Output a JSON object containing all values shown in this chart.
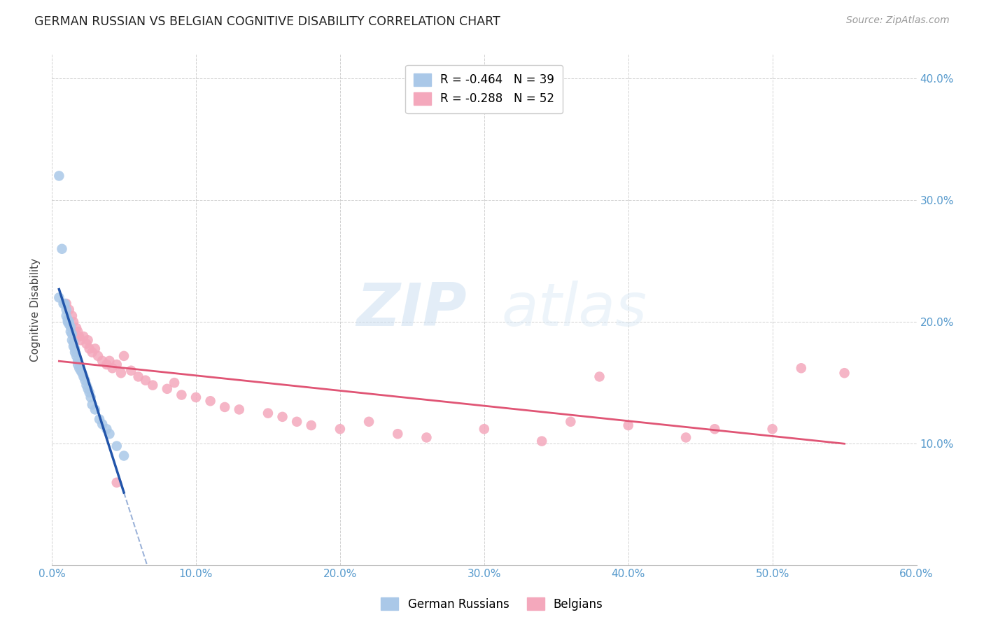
{
  "title": "GERMAN RUSSIAN VS BELGIAN COGNITIVE DISABILITY CORRELATION CHART",
  "source": "Source: ZipAtlas.com",
  "ylabel_label": "Cognitive Disability",
  "x_min": 0.0,
  "x_max": 0.6,
  "y_min": 0.0,
  "y_max": 0.42,
  "x_ticks": [
    0.0,
    0.1,
    0.2,
    0.3,
    0.4,
    0.5,
    0.6
  ],
  "y_ticks": [
    0.1,
    0.2,
    0.3,
    0.4
  ],
  "x_tick_labels": [
    "0.0%",
    "10.0%",
    "20.0%",
    "30.0%",
    "40.0%",
    "50.0%",
    "60.0%"
  ],
  "y_tick_labels": [
    "10.0%",
    "20.0%",
    "30.0%",
    "40.0%"
  ],
  "blue_R": -0.464,
  "blue_N": 39,
  "pink_R": -0.288,
  "pink_N": 52,
  "blue_color": "#aac8e8",
  "pink_color": "#f4a8bc",
  "blue_line_color": "#2255aa",
  "pink_line_color": "#e05575",
  "watermark_zip": "ZIP",
  "watermark_atlas": "atlas",
  "legend_label_blue": "German Russians",
  "legend_label_pink": "Belgians",
  "blue_points_x": [
    0.005,
    0.007,
    0.008,
    0.009,
    0.01,
    0.01,
    0.011,
    0.011,
    0.012,
    0.012,
    0.013,
    0.013,
    0.014,
    0.014,
    0.015,
    0.015,
    0.016,
    0.016,
    0.017,
    0.018,
    0.018,
    0.019,
    0.02,
    0.021,
    0.022,
    0.023,
    0.024,
    0.025,
    0.026,
    0.027,
    0.028,
    0.03,
    0.033,
    0.035,
    0.038,
    0.04,
    0.045,
    0.05,
    0.005
  ],
  "blue_points_y": [
    0.32,
    0.26,
    0.215,
    0.215,
    0.21,
    0.205,
    0.202,
    0.2,
    0.2,
    0.198,
    0.196,
    0.192,
    0.19,
    0.185,
    0.183,
    0.18,
    0.178,
    0.175,
    0.172,
    0.168,
    0.165,
    0.162,
    0.16,
    0.158,
    0.155,
    0.152,
    0.148,
    0.145,
    0.142,
    0.138,
    0.132,
    0.128,
    0.12,
    0.116,
    0.112,
    0.108,
    0.098,
    0.09,
    0.22
  ],
  "pink_points_x": [
    0.01,
    0.012,
    0.014,
    0.015,
    0.017,
    0.018,
    0.019,
    0.02,
    0.022,
    0.024,
    0.025,
    0.026,
    0.028,
    0.03,
    0.032,
    0.035,
    0.038,
    0.04,
    0.042,
    0.045,
    0.048,
    0.05,
    0.055,
    0.06,
    0.065,
    0.07,
    0.08,
    0.085,
    0.09,
    0.1,
    0.11,
    0.12,
    0.13,
    0.15,
    0.16,
    0.17,
    0.18,
    0.2,
    0.22,
    0.24,
    0.26,
    0.3,
    0.34,
    0.36,
    0.4,
    0.44,
    0.46,
    0.5,
    0.52,
    0.55,
    0.045,
    0.38
  ],
  "pink_points_y": [
    0.215,
    0.21,
    0.205,
    0.2,
    0.195,
    0.192,
    0.188,
    0.185,
    0.188,
    0.182,
    0.185,
    0.178,
    0.175,
    0.178,
    0.172,
    0.168,
    0.165,
    0.168,
    0.162,
    0.165,
    0.158,
    0.172,
    0.16,
    0.155,
    0.152,
    0.148,
    0.145,
    0.15,
    0.14,
    0.138,
    0.135,
    0.13,
    0.128,
    0.125,
    0.122,
    0.118,
    0.115,
    0.112,
    0.118,
    0.108,
    0.105,
    0.112,
    0.102,
    0.118,
    0.115,
    0.105,
    0.112,
    0.112,
    0.162,
    0.158,
    0.068,
    0.155
  ]
}
